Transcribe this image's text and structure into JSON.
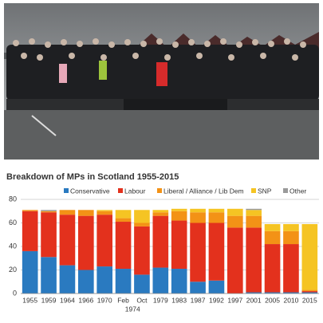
{
  "chart_data": {
    "type": "stacked-bar",
    "title": "Breakdown of MPs in Scotland 1955-2015",
    "categories": [
      "1955",
      "1959",
      "1964",
      "1966",
      "1970",
      "Feb",
      "Oct",
      "1979",
      "1983",
      "1987",
      "1992",
      "1997",
      "2001",
      "2005",
      "2010",
      "2015"
    ],
    "annotations": [
      "1974"
    ],
    "series": [
      {
        "name": "Conservative",
        "color": "#2a7ac0",
        "values": [
          36,
          31,
          24,
          20,
          23,
          21,
          16,
          22,
          21,
          10,
          11,
          0,
          1,
          1,
          1,
          1
        ]
      },
      {
        "name": "Labour",
        "color": "#e3311d",
        "values": [
          34,
          38,
          43,
          46,
          44,
          40,
          41,
          44,
          41,
          50,
          49,
          56,
          55,
          41,
          41,
          1
        ]
      },
      {
        "name": "Liberal / Alliance / Lib Dem",
        "color": "#f39216",
        "values": [
          1,
          1,
          4,
          5,
          3,
          3,
          3,
          3,
          8,
          9,
          9,
          10,
          10,
          11,
          11,
          1
        ]
      },
      {
        "name": "SNP",
        "color": "#f5c423",
        "values": [
          0,
          0,
          0,
          0,
          1,
          7,
          11,
          2,
          2,
          3,
          3,
          6,
          5,
          6,
          6,
          56
        ]
      },
      {
        "name": "Other",
        "color": "#9a9a9a",
        "values": [
          0,
          1,
          0,
          0,
          0,
          0,
          0,
          0,
          0,
          0,
          0,
          0,
          1,
          0,
          0,
          0
        ]
      }
    ],
    "ylim": [
      0,
      80
    ],
    "yticks": [
      0,
      20,
      40,
      60,
      80
    ],
    "grid": true
  }
}
